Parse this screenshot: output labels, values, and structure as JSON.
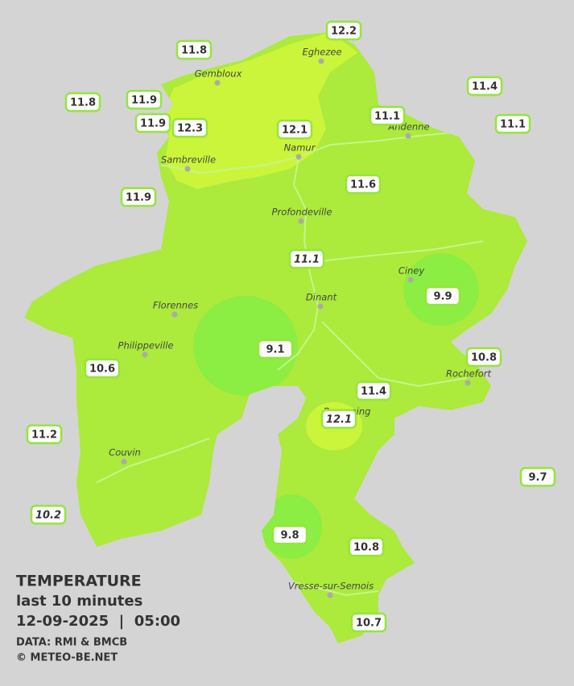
{
  "legend": {
    "title": "TEMPERATURE",
    "period": "last 10 minutes",
    "datetime": "12-09-2025  |  05:00",
    "source": "DATA: RMI & BMCB",
    "credit": "© METEO-BE.NET"
  },
  "cities": [
    "Eghezee",
    "Gembloux",
    "Andenne",
    "Namur",
    "Sambreville",
    "Profondeville",
    "Ciney",
    "Dinant",
    "Florennes",
    "Philippeville",
    "Rochefort",
    "Beauraing",
    "Couvin",
    "Vresse-sur-Semois"
  ],
  "stations": [
    {
      "value": 12.2
    },
    {
      "value": 11.8
    },
    {
      "value": 11.4
    },
    {
      "value": 11.8
    },
    {
      "value": 11.9
    },
    {
      "value": 11.9
    },
    {
      "value": 12.3
    },
    {
      "value": 12.1
    },
    {
      "value": 11.1
    },
    {
      "value": 11.1
    },
    {
      "value": 11.6
    },
    {
      "value": 11.9
    },
    {
      "value": 11.1,
      "italic": true
    },
    {
      "value": 9.9
    },
    {
      "value": 9.1
    },
    {
      "value": 10.6
    },
    {
      "value": 10.8
    },
    {
      "value": 11.4
    },
    {
      "value": 12.1,
      "italic": true
    },
    {
      "value": 11.2
    },
    {
      "value": 9.7
    },
    {
      "value": 10.2,
      "italic": true
    },
    {
      "value": 9.8
    },
    {
      "value": 10.8
    },
    {
      "value": 10.7
    }
  ]
}
